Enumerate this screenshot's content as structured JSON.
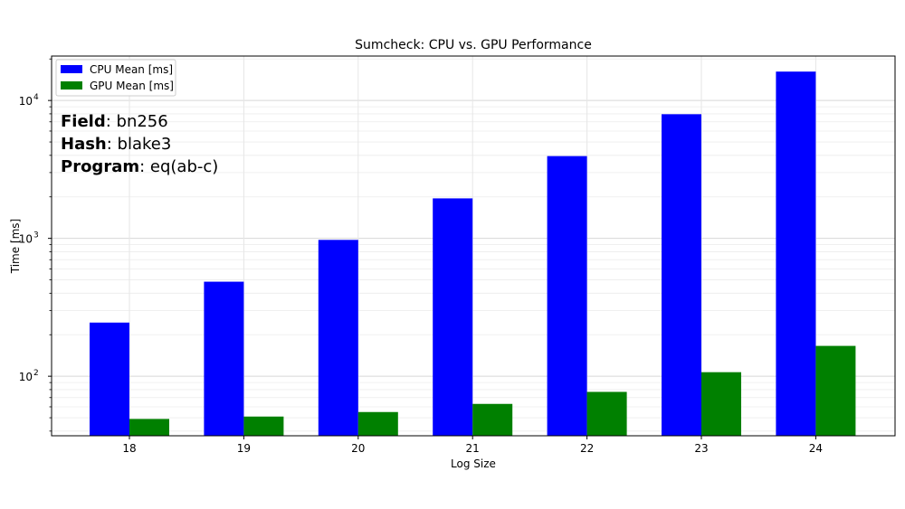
{
  "chart_data": {
    "type": "bar",
    "title": "Sumcheck: CPU vs. GPU Performance",
    "xlabel": "Log Size",
    "ylabel": "Time [ms]",
    "y_scale": "log",
    "ylim": [
      37,
      21000
    ],
    "grid": true,
    "legend_position": "top-left",
    "categories": [
      "18",
      "19",
      "20",
      "21",
      "22",
      "23",
      "24"
    ],
    "y_ticks": [
      {
        "value": 100,
        "base": "10",
        "exp": "2"
      },
      {
        "value": 1000,
        "base": "10",
        "exp": "3"
      },
      {
        "value": 10000,
        "base": "10",
        "exp": "4"
      }
    ],
    "series": [
      {
        "name": "CPU Mean [ms]",
        "color": "#0000ff",
        "values": [
          245,
          485,
          975,
          1950,
          3950,
          7950,
          16200
        ]
      },
      {
        "name": "GPU Mean [ms]",
        "color": "#008000",
        "values": [
          49,
          51,
          55,
          63,
          77,
          107,
          166
        ]
      }
    ],
    "annotations": [
      {
        "label": "Field",
        "value": ": bn256"
      },
      {
        "label": "Hash",
        "value": ": blake3"
      },
      {
        "label": "Program",
        "value": ": eq(ab-c)"
      }
    ]
  }
}
